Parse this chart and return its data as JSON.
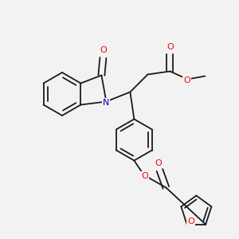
{
  "bg_color": "#f2f2f2",
  "bond_color": "#1a1a1a",
  "bond_width": 1.3,
  "atom_colors": {
    "O": "#ff0000",
    "N": "#0000cc",
    "C": "#1a1a1a"
  },
  "figsize": [
    3.0,
    3.0
  ],
  "dpi": 100
}
